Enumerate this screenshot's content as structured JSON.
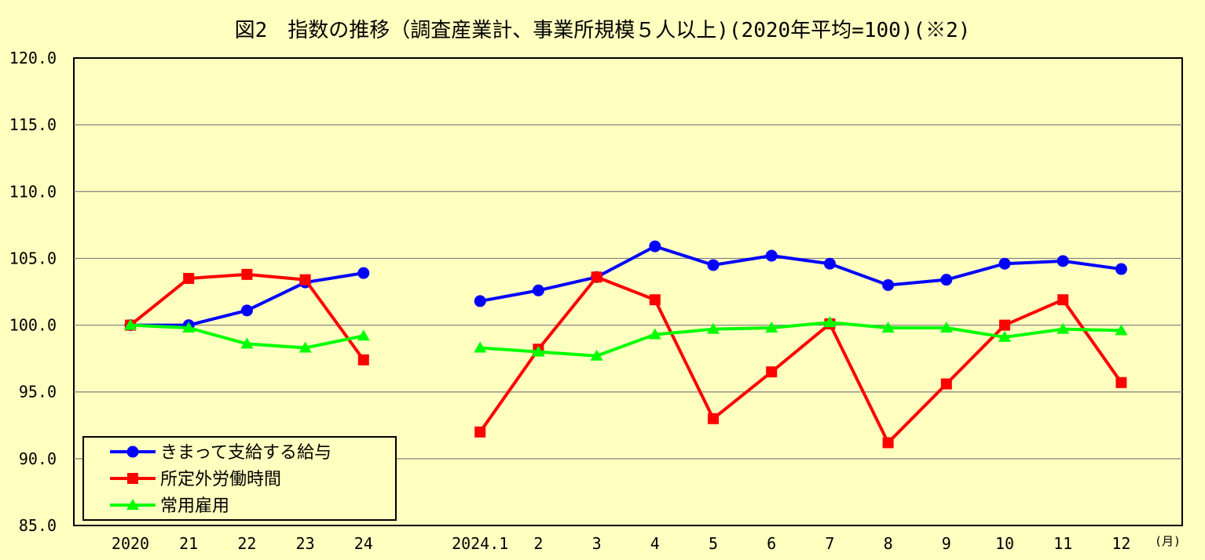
{
  "chart_data": {
    "type": "line",
    "title": "図2　指数の推移（調査産業計、事業所規模５人以上)(2020年平均=100)(※2)",
    "x_unit": "(月)",
    "categories": [
      "2020",
      "21",
      "22",
      "23",
      "24",
      "",
      "2024.1",
      "2",
      "3",
      "4",
      "5",
      "6",
      "7",
      "8",
      "9",
      "10",
      "11",
      "12"
    ],
    "ylim": [
      85,
      120
    ],
    "yticks": [
      "120.0",
      "115.0",
      "110.0",
      "105.0",
      "100.0",
      "95.0",
      "90.0",
      "85.0"
    ],
    "grid": true,
    "legend_position": "bottom-left",
    "series": [
      {
        "name": "きまって支給する給与",
        "color": "#0000ff",
        "marker": "circle",
        "values": [
          100.0,
          100.0,
          101.1,
          103.2,
          103.9,
          null,
          101.8,
          102.6,
          103.6,
          105.9,
          104.5,
          105.2,
          104.6,
          103.0,
          103.4,
          104.6,
          104.8,
          104.2
        ]
      },
      {
        "name": "所定外労働時間",
        "color": "#ff0000",
        "marker": "square",
        "values": [
          100.0,
          103.5,
          103.8,
          103.4,
          97.4,
          null,
          92.0,
          98.2,
          103.6,
          101.9,
          93.0,
          96.5,
          100.1,
          91.2,
          95.6,
          100.0,
          101.9,
          95.7
        ]
      },
      {
        "name": "常用雇用",
        "color": "#00ff00",
        "marker": "triangle",
        "values": [
          100.0,
          99.8,
          98.6,
          98.3,
          99.2,
          null,
          98.3,
          98.0,
          97.7,
          99.3,
          99.7,
          99.8,
          100.2,
          99.8,
          99.8,
          99.1,
          99.7,
          99.6
        ]
      }
    ]
  }
}
